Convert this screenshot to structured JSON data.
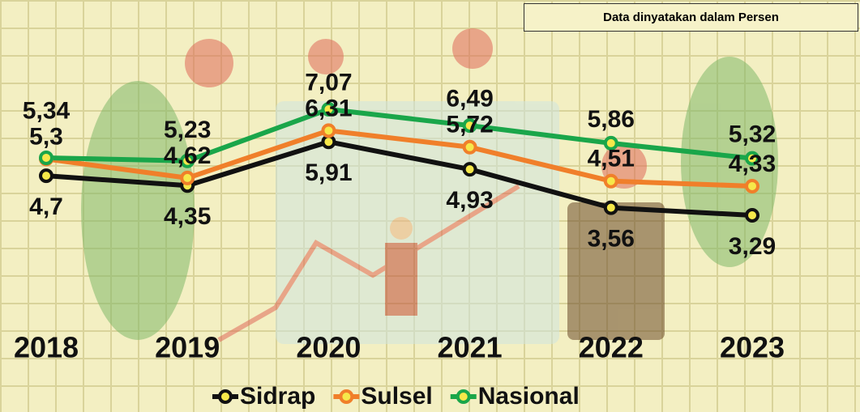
{
  "note": "Data dinyatakan dalam Persen",
  "chart_data": {
    "type": "line",
    "categories": [
      "2018",
      "2019",
      "2020",
      "2021",
      "2022",
      "2023"
    ],
    "series": [
      {
        "name": "Sidrap",
        "color": "#111111",
        "values": [
          4.7,
          4.35,
          5.91,
          4.93,
          3.56,
          3.29
        ],
        "value_labels": [
          "4,7",
          "4,35",
          "5,91",
          "4,93",
          "3,56",
          "3,29"
        ]
      },
      {
        "name": "Sulsel",
        "color": "#f07f2a",
        "values": [
          5.3,
          4.62,
          6.31,
          5.72,
          4.51,
          4.33
        ],
        "value_labels": [
          "5,3",
          "4,62",
          "6,31",
          "5,72",
          "4,51",
          "4,33"
        ]
      },
      {
        "name": "Nasional",
        "color": "#1aa64a",
        "values": [
          5.34,
          5.23,
          7.07,
          6.49,
          5.86,
          5.32
        ],
        "value_labels": [
          "5,34",
          "5,23",
          "7,07",
          "6,49",
          "5,86",
          "5,32"
        ]
      }
    ]
  }
}
